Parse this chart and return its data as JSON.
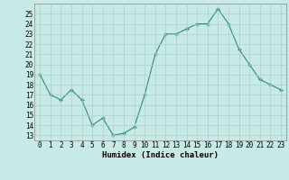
{
  "x": [
    0,
    1,
    2,
    3,
    4,
    5,
    6,
    7,
    8,
    9,
    10,
    11,
    12,
    13,
    14,
    15,
    16,
    17,
    18,
    19,
    20,
    21,
    22,
    23
  ],
  "y": [
    19,
    17,
    16.5,
    17.5,
    16.5,
    14,
    14.7,
    13,
    13.2,
    13.8,
    17,
    21,
    23,
    23,
    23.5,
    24,
    24,
    25.5,
    24,
    21.5,
    20,
    18.5,
    18,
    17.5
  ],
  "line_color": "#2e8b74",
  "marker_color": "#2e8b74",
  "bg_color": "#c8eae6",
  "grid_color": "#aacfcc",
  "xlabel": "Humidex (Indice chaleur)",
  "ylim": [
    12.5,
    26
  ],
  "xlim": [
    -0.5,
    23.5
  ],
  "yticks": [
    13,
    14,
    15,
    16,
    17,
    18,
    19,
    20,
    21,
    22,
    23,
    24,
    25
  ],
  "xticks": [
    0,
    1,
    2,
    3,
    4,
    5,
    6,
    7,
    8,
    9,
    10,
    11,
    12,
    13,
    14,
    15,
    16,
    17,
    18,
    19,
    20,
    21,
    22,
    23
  ],
  "label_fontsize": 6.5,
  "tick_fontsize": 5.5
}
